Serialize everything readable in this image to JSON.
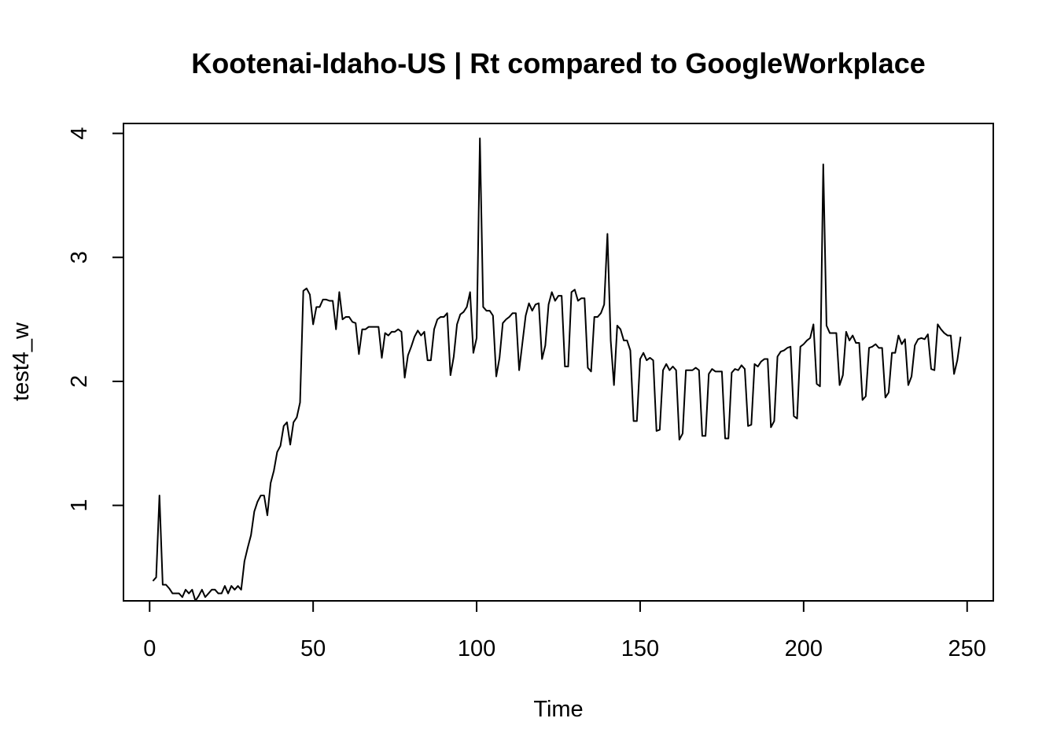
{
  "chart_data": {
    "type": "line",
    "title": "Kootenai-Idaho-US | Rt compared to GoogleWorkplace",
    "xlabel": "Time",
    "ylabel": "test4_w",
    "xlim": [
      -8,
      258
    ],
    "ylim": [
      0.23,
      4.08
    ],
    "xticks": [
      0,
      50,
      100,
      150,
      200,
      250
    ],
    "yticks": [
      1,
      2,
      3,
      4
    ],
    "grid": false,
    "legend": "none",
    "series": [
      {
        "color": "#000000",
        "x_start": 1,
        "values": [
          0.39,
          0.42,
          1.08,
          0.36,
          0.36,
          0.33,
          0.29,
          0.29,
          0.29,
          0.26,
          0.32,
          0.29,
          0.32,
          0.23,
          0.27,
          0.32,
          0.26,
          0.29,
          0.32,
          0.32,
          0.29,
          0.29,
          0.35,
          0.29,
          0.35,
          0.32,
          0.35,
          0.32,
          0.55,
          0.66,
          0.76,
          0.95,
          1.03,
          1.08,
          1.08,
          0.92,
          1.18,
          1.28,
          1.43,
          1.48,
          1.64,
          1.67,
          1.49,
          1.67,
          1.71,
          1.83,
          2.73,
          2.75,
          2.7,
          2.46,
          2.6,
          2.6,
          2.66,
          2.66,
          2.65,
          2.65,
          2.42,
          2.72,
          2.5,
          2.52,
          2.52,
          2.48,
          2.47,
          2.22,
          2.42,
          2.42,
          2.44,
          2.44,
          2.44,
          2.44,
          2.19,
          2.39,
          2.37,
          2.4,
          2.4,
          2.42,
          2.4,
          2.03,
          2.21,
          2.28,
          2.36,
          2.41,
          2.37,
          2.4,
          2.17,
          2.17,
          2.42,
          2.5,
          2.52,
          2.52,
          2.55,
          2.05,
          2.2,
          2.46,
          2.54,
          2.56,
          2.6,
          2.72,
          2.23,
          2.35,
          3.96,
          2.6,
          2.57,
          2.57,
          2.53,
          2.04,
          2.19,
          2.47,
          2.5,
          2.52,
          2.55,
          2.55,
          2.09,
          2.31,
          2.53,
          2.63,
          2.57,
          2.62,
          2.63,
          2.18,
          2.29,
          2.62,
          2.72,
          2.65,
          2.69,
          2.69,
          2.12,
          2.12,
          2.72,
          2.74,
          2.65,
          2.67,
          2.67,
          2.11,
          2.08,
          2.52,
          2.52,
          2.55,
          2.62,
          3.19,
          2.33,
          1.97,
          2.45,
          2.42,
          2.33,
          2.33,
          2.25,
          1.68,
          1.68,
          2.18,
          2.23,
          2.17,
          2.19,
          2.17,
          1.6,
          1.61,
          2.09,
          2.14,
          2.09,
          2.12,
          2.09,
          1.53,
          1.58,
          2.09,
          2.09,
          2.09,
          2.11,
          2.09,
          1.56,
          1.56,
          2.06,
          2.1,
          2.08,
          2.08,
          2.08,
          1.54,
          1.54,
          2.07,
          2.1,
          2.09,
          2.13,
          2.1,
          1.64,
          1.65,
          2.14,
          2.12,
          2.16,
          2.18,
          2.18,
          1.63,
          1.68,
          2.2,
          2.24,
          2.25,
          2.27,
          2.28,
          1.72,
          1.7,
          2.28,
          2.3,
          2.33,
          2.35,
          2.46,
          1.98,
          1.96,
          3.75,
          2.45,
          2.39,
          2.39,
          2.39,
          1.97,
          2.05,
          2.4,
          2.33,
          2.37,
          2.31,
          2.31,
          1.85,
          1.88,
          2.27,
          2.28,
          2.3,
          2.27,
          2.27,
          1.87,
          1.91,
          2.23,
          2.23,
          2.37,
          2.3,
          2.34,
          1.97,
          2.04,
          2.29,
          2.34,
          2.35,
          2.34,
          2.38,
          2.1,
          2.09,
          2.46,
          2.42,
          2.39,
          2.37,
          2.37,
          2.06,
          2.17,
          2.36
        ]
      }
    ]
  }
}
